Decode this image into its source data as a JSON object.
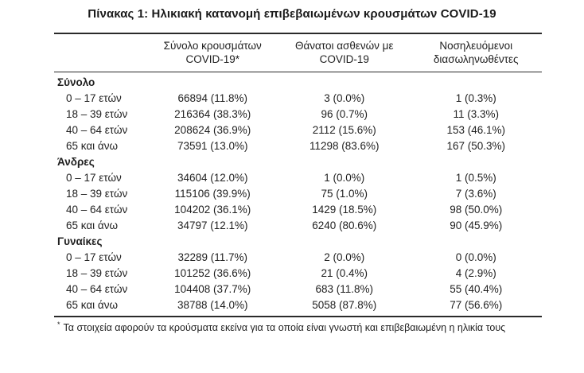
{
  "title": "Πίνακας 1: Ηλικιακή κατανομή επιβεβαιωμένων κρουσμάτων COVID-19",
  "table": {
    "columns": [
      {
        "line1": "",
        "line2": ""
      },
      {
        "line1": "Σύνολο κρουσμάτων",
        "line2": "COVID-19*"
      },
      {
        "line1": "Θάνατοι ασθενών με",
        "line2": "COVID-19"
      },
      {
        "line1": "Νοσηλευόμενοι",
        "line2": "διασωληνωθέντες"
      }
    ],
    "sections": [
      {
        "label": "Σύνολο",
        "rows": [
          {
            "age": "0 – 17 ετών",
            "cases": "66894 (11.8%)",
            "deaths": "3 (0.0%)",
            "intubated": "1 (0.3%)"
          },
          {
            "age": "18 – 39 ετών",
            "cases": "216364 (38.3%)",
            "deaths": "96 (0.7%)",
            "intubated": "11 (3.3%)"
          },
          {
            "age": "40 – 64 ετών",
            "cases": "208624 (36.9%)",
            "deaths": "2112 (15.6%)",
            "intubated": "153 (46.1%)"
          },
          {
            "age": "65 και άνω",
            "cases": "73591 (13.0%)",
            "deaths": "11298 (83.6%)",
            "intubated": "167 (50.3%)"
          }
        ]
      },
      {
        "label": "Άνδρες",
        "rows": [
          {
            "age": "0 – 17 ετών",
            "cases": "34604 (12.0%)",
            "deaths": "1 (0.0%)",
            "intubated": "1 (0.5%)"
          },
          {
            "age": "18 – 39 ετών",
            "cases": "115106 (39.9%)",
            "deaths": "75 (1.0%)",
            "intubated": "7 (3.6%)"
          },
          {
            "age": "40 – 64 ετών",
            "cases": "104202 (36.1%)",
            "deaths": "1429 (18.5%)",
            "intubated": "98 (50.0%)"
          },
          {
            "age": "65 και άνω",
            "cases": "34797 (12.1%)",
            "deaths": "6240 (80.6%)",
            "intubated": "90 (45.9%)"
          }
        ]
      },
      {
        "label": "Γυναίκες",
        "rows": [
          {
            "age": "0 – 17 ετών",
            "cases": "32289 (11.7%)",
            "deaths": "2 (0.0%)",
            "intubated": "0 (0.0%)"
          },
          {
            "age": "18 – 39 ετών",
            "cases": "101252 (36.6%)",
            "deaths": "21 (0.4%)",
            "intubated": "4 (2.9%)"
          },
          {
            "age": "40 – 64 ετών",
            "cases": "104408 (37.7%)",
            "deaths": "683 (11.8%)",
            "intubated": "55 (40.4%)"
          },
          {
            "age": "65 και άνω",
            "cases": "38788 (14.0%)",
            "deaths": "5058 (87.8%)",
            "intubated": "77 (56.6%)"
          }
        ]
      }
    ],
    "footnote": {
      "marker": "*",
      "text": "Τα στοιχεία αφορούν τα κρούσματα εκείνα για τα οποία είναι γνωστή και επιβεβαιωμένη η ηλικία τους"
    }
  },
  "colors": {
    "text": "#1f1f1f",
    "rule": "#2a2a2a",
    "background": "#ffffff"
  }
}
